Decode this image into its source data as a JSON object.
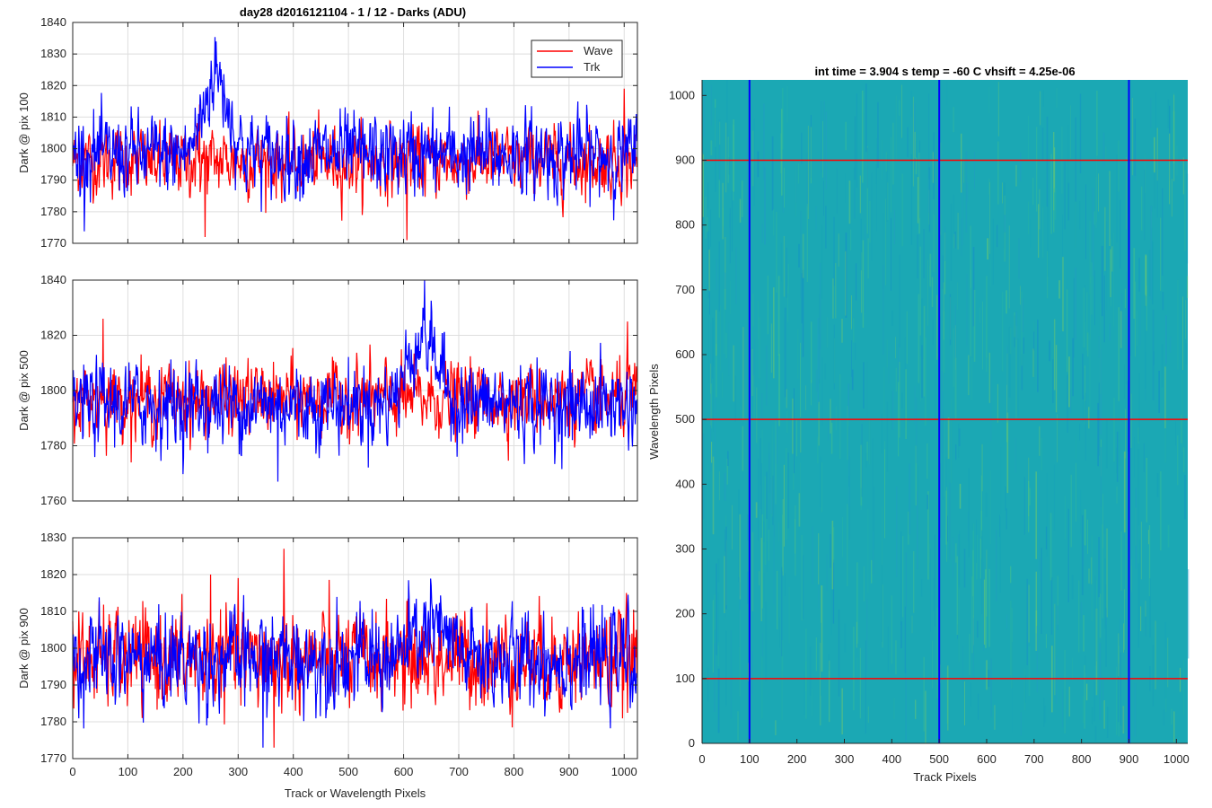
{
  "figure_title": "day28 d2016121104 - 1 / 12 - Darks (ADU)",
  "colors": {
    "wave": "#ff0000",
    "trk": "#0000ff",
    "grid": "#dedede",
    "axis": "#262626"
  },
  "chart_data": [
    {
      "type": "line",
      "title": "day28 d2016121104 - 1 / 12 - Darks (ADU)",
      "xlabel": "",
      "ylabel": "Dark @ pix 100",
      "xlim": [
        0,
        1024
      ],
      "ylim": [
        1770,
        1840
      ],
      "xticks": [
        0,
        100,
        200,
        300,
        400,
        500,
        600,
        700,
        800,
        900,
        1000
      ],
      "yticks": [
        1770,
        1780,
        1790,
        1800,
        1810,
        1820,
        1830,
        1840
      ],
      "grid": true,
      "legend": {
        "placement": "top-right",
        "entries": [
          "Wave",
          "Trk"
        ]
      },
      "series": [
        {
          "name": "Wave",
          "color": "#ff0000",
          "mean": 1796,
          "noise": 5,
          "min_points": [
            {
              "x": 240,
              "y": 1772
            },
            {
              "x": 606,
              "y": 1771
            }
          ],
          "max_points": [
            {
              "x": 1000,
              "y": 1819
            },
            {
              "x": 230,
              "y": 1814
            }
          ]
        },
        {
          "name": "Trk",
          "color": "#0000ff",
          "mean": 1798,
          "noise": 6,
          "bump": {
            "center": 260,
            "width": 22,
            "height": 25,
            "peak": 1834
          }
        }
      ]
    },
    {
      "type": "line",
      "title": "",
      "xlabel": "",
      "ylabel": "Dark @ pix 500",
      "xlim": [
        0,
        1024
      ],
      "ylim": [
        1760,
        1840
      ],
      "xticks": [
        0,
        100,
        200,
        300,
        400,
        500,
        600,
        700,
        800,
        900,
        1000
      ],
      "yticks": [
        1760,
        1780,
        1800,
        1820,
        1840
      ],
      "grid": true,
      "series": [
        {
          "name": "Wave",
          "color": "#ff0000",
          "mean": 1797,
          "noise": 6,
          "max_points": [
            {
              "x": 55,
              "y": 1826
            },
            {
              "x": 1006,
              "y": 1825
            }
          ]
        },
        {
          "name": "Trk",
          "color": "#0000ff",
          "mean": 1795,
          "noise": 7,
          "bump": {
            "center": 635,
            "width": 26,
            "height": 25,
            "peak": 1830
          },
          "min_points": [
            {
              "x": 372,
              "y": 1767
            }
          ]
        }
      ]
    },
    {
      "type": "line",
      "title": "",
      "xlabel": "Track or Wavelength Pixels",
      "ylabel": "Dark @ pix 900",
      "xlim": [
        0,
        1024
      ],
      "ylim": [
        1770,
        1830
      ],
      "xticks": [
        0,
        100,
        200,
        300,
        400,
        500,
        600,
        700,
        800,
        900,
        1000
      ],
      "yticks": [
        1770,
        1780,
        1790,
        1800,
        1810,
        1820,
        1830
      ],
      "grid": true,
      "series": [
        {
          "name": "Wave",
          "color": "#ff0000",
          "mean": 1797,
          "noise": 6,
          "max_points": [
            {
              "x": 383,
              "y": 1827
            },
            {
              "x": 250,
              "y": 1820
            }
          ],
          "min_points": [
            {
              "x": 365,
              "y": 1773
            }
          ]
        },
        {
          "name": "Trk",
          "color": "#0000ff",
          "mean": 1797,
          "noise": 6,
          "bump": {
            "center": 650,
            "width": 30,
            "height": 8,
            "peak": 1817
          },
          "min_points": [
            {
              "x": 345,
              "y": 1773
            }
          ]
        }
      ]
    },
    {
      "type": "heatmap",
      "title": "int time = 3.904 s   temp = -60 C   vhsift = 4.25e-06",
      "xlabel": "Track Pixels",
      "ylabel": "Wavelength Pixels",
      "xlim": [
        0,
        1024
      ],
      "ylim": [
        0,
        1024
      ],
      "xticks": [
        0,
        100,
        200,
        300,
        400,
        500,
        600,
        700,
        800,
        900,
        1000
      ],
      "yticks": [
        0,
        100,
        200,
        300,
        400,
        500,
        600,
        700,
        800,
        900,
        1000
      ],
      "colormap": "parula",
      "base_color": "#1ba8b4",
      "vertical_markers": {
        "color": "#0000ff",
        "x": [
          100,
          500,
          900
        ]
      },
      "horizontal_markers": {
        "color": "#ff0000",
        "y": [
          100,
          500,
          900
        ]
      }
    }
  ]
}
